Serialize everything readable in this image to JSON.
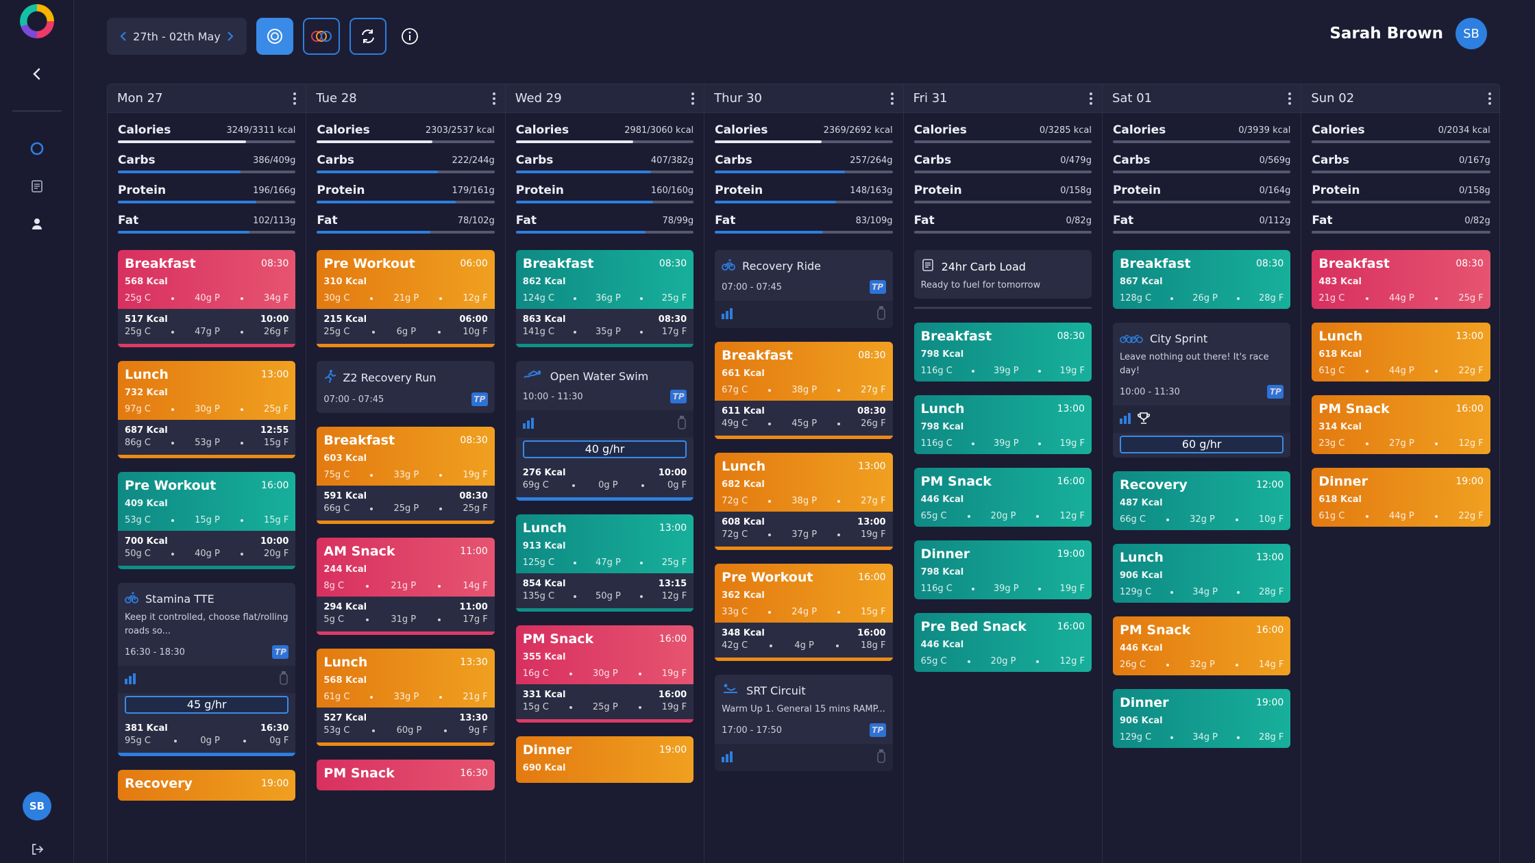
{
  "nav": {
    "user_initials": "SB"
  },
  "header": {
    "date_range": "27th - 02th May",
    "user_name": "Sarah Brown",
    "user_initials": "SB"
  },
  "colors": {
    "teal": "#14a596",
    "orange": "#ee9018",
    "red": "#dd3b65",
    "blue": "#2d7fe0",
    "white": "#e9eaf2"
  },
  "days": [
    {
      "label": "Mon 27",
      "macros": [
        {
          "name": "Calories",
          "value": "3249/3311 kcal",
          "pct": 0.72,
          "color": "#e9eaf2"
        },
        {
          "name": "Carbs",
          "value": "386/409g",
          "pct": 0.69,
          "color": "#2d7fe0"
        },
        {
          "name": "Protein",
          "value": "196/166g",
          "pct": 0.78,
          "color": "#2d7fe0"
        },
        {
          "name": "Fat",
          "value": "102/113g",
          "pct": 0.74,
          "color": "#2d7fe0"
        }
      ],
      "cards": [
        {
          "kind": "meal",
          "color": "red",
          "name": "Breakfast",
          "time": "08:30",
          "kcal": "568 Kcal",
          "c": "25g C",
          "p": "40g P",
          "f": "34g F",
          "sub": {
            "kcal": "517 Kcal",
            "time": "10:00",
            "c": "25g C",
            "p": "47g P",
            "f": "26g F"
          }
        },
        {
          "kind": "meal",
          "color": "orange",
          "name": "Lunch",
          "time": "13:00",
          "kcal": "732 Kcal",
          "c": "97g C",
          "p": "30g P",
          "f": "25g F",
          "sub": {
            "kcal": "687 Kcal",
            "time": "12:55",
            "c": "86g C",
            "p": "53g P",
            "f": "15g F"
          }
        },
        {
          "kind": "meal",
          "color": "teal",
          "name": "Pre Workout",
          "time": "16:00",
          "kcal": "409 Kcal",
          "c": "53g C",
          "p": "15g P",
          "f": "15g F",
          "sub": {
            "kcal": "700 Kcal",
            "time": "10:00",
            "c": "50g C",
            "p": "40g P",
            "f": "20g F"
          }
        },
        {
          "kind": "workout",
          "icon": "cycling-icon",
          "title": "Stamina TTE",
          "desc": "Keep it controlled, choose flat/rolling roads so...",
          "time": "16:30 - 18:30",
          "intake": "45 g/hr",
          "sub": {
            "kcal": "381 Kcal",
            "time": "16:30",
            "c": "95g C",
            "p": "0g P",
            "f": "0g F"
          }
        },
        {
          "kind": "meal",
          "color": "orange",
          "name": "Recovery",
          "time": "19:00",
          "kcal": "",
          "c": "",
          "p": "",
          "f": ""
        }
      ]
    },
    {
      "label": "Tue 28",
      "macros": [
        {
          "name": "Calories",
          "value": "2303/2537 kcal",
          "pct": 0.65,
          "color": "#e9eaf2"
        },
        {
          "name": "Carbs",
          "value": "222/244g",
          "pct": 0.68,
          "color": "#2d7fe0"
        },
        {
          "name": "Protein",
          "value": "179/161g",
          "pct": 0.78,
          "color": "#2d7fe0"
        },
        {
          "name": "Fat",
          "value": "78/102g",
          "pct": 0.64,
          "color": "#2d7fe0"
        }
      ],
      "cards": [
        {
          "kind": "meal",
          "color": "orange",
          "name": "Pre Workout",
          "time": "06:00",
          "kcal": "310 Kcal",
          "c": "30g C",
          "p": "21g P",
          "f": "12g F",
          "sub": {
            "kcal": "215 Kcal",
            "time": "06:00",
            "c": "25g C",
            "p": "6g P",
            "f": "10g F"
          }
        },
        {
          "kind": "workout",
          "icon": "running-icon",
          "title": "Z2 Recovery Run",
          "desc": "",
          "time": "07:00 - 07:45",
          "nofoot": true
        },
        {
          "kind": "meal",
          "color": "orange",
          "name": "Breakfast",
          "time": "08:30",
          "kcal": "603 Kcal",
          "c": "75g C",
          "p": "33g P",
          "f": "19g F",
          "sub": {
            "kcal": "591 Kcal",
            "time": "08:30",
            "c": "66g C",
            "p": "25g P",
            "f": "25g F"
          }
        },
        {
          "kind": "meal",
          "color": "red",
          "name": "AM Snack",
          "time": "11:00",
          "kcal": "244 Kcal",
          "c": "8g C",
          "p": "21g P",
          "f": "14g F",
          "sub": {
            "kcal": "294 Kcal",
            "time": "11:00",
            "c": "5g C",
            "p": "31g P",
            "f": "17g F"
          }
        },
        {
          "kind": "meal",
          "color": "orange",
          "name": "Lunch",
          "time": "13:30",
          "kcal": "568 Kcal",
          "c": "61g C",
          "p": "33g P",
          "f": "21g F",
          "sub": {
            "kcal": "527 Kcal",
            "time": "13:30",
            "c": "53g C",
            "p": "60g P",
            "f": "9g F"
          }
        },
        {
          "kind": "meal",
          "color": "red",
          "name": "PM Snack",
          "time": "16:30",
          "kcal": "",
          "c": "",
          "p": "",
          "f": ""
        }
      ]
    },
    {
      "label": "Wed 29",
      "macros": [
        {
          "name": "Calories",
          "value": "2981/3060 kcal",
          "pct": 0.66,
          "color": "#e9eaf2"
        },
        {
          "name": "Carbs",
          "value": "407/382g",
          "pct": 0.76,
          "color": "#2d7fe0"
        },
        {
          "name": "Protein",
          "value": "160/160g",
          "pct": 0.77,
          "color": "#2d7fe0"
        },
        {
          "name": "Fat",
          "value": "78/99g",
          "pct": 0.73,
          "color": "#2d7fe0"
        }
      ],
      "cards": [
        {
          "kind": "meal",
          "color": "teal",
          "name": "Breakfast",
          "time": "08:30",
          "kcal": "862 Kcal",
          "c": "124g C",
          "p": "36g P",
          "f": "25g F",
          "sub": {
            "kcal": "863 Kcal",
            "time": "08:30",
            "c": "141g C",
            "p": "35g P",
            "f": "17g F"
          }
        },
        {
          "kind": "workout",
          "icon": "swimming-icon",
          "title": "Open Water Swim",
          "desc": "",
          "time": "10:00 - 11:30",
          "intake": "40 g/hr",
          "sub": {
            "kcal": "276 Kcal",
            "time": "10:00",
            "c": "69g C",
            "p": "0g P",
            "f": "0g F"
          }
        },
        {
          "kind": "meal",
          "color": "teal",
          "name": "Lunch",
          "time": "13:00",
          "kcal": "913 Kcal",
          "c": "125g C",
          "p": "47g P",
          "f": "25g F",
          "sub": {
            "kcal": "854 Kcal",
            "time": "13:15",
            "c": "135g C",
            "p": "50g P",
            "f": "12g F"
          }
        },
        {
          "kind": "meal",
          "color": "red",
          "name": "PM Snack",
          "time": "16:00",
          "kcal": "355 Kcal",
          "c": "16g C",
          "p": "30g P",
          "f": "19g F",
          "sub": {
            "kcal": "331 Kcal",
            "time": "16:00",
            "c": "15g C",
            "p": "25g P",
            "f": "19g F"
          }
        },
        {
          "kind": "meal",
          "color": "orange",
          "name": "Dinner",
          "time": "19:00",
          "kcal": "690 Kcal",
          "c": "",
          "p": "",
          "f": ""
        }
      ]
    },
    {
      "label": "Thur 30",
      "macros": [
        {
          "name": "Calories",
          "value": "2369/2692 kcal",
          "pct": 0.6,
          "color": "#e9eaf2"
        },
        {
          "name": "Carbs",
          "value": "257/264g",
          "pct": 0.73,
          "color": "#2d7fe0"
        },
        {
          "name": "Protein",
          "value": "148/163g",
          "pct": 0.68,
          "color": "#2d7fe0"
        },
        {
          "name": "Fat",
          "value": "83/109g",
          "pct": 0.61,
          "color": "#2d7fe0"
        }
      ],
      "cards": [
        {
          "kind": "workout",
          "icon": "cycling-icon",
          "title": "Recovery Ride",
          "desc": "",
          "time": "07:00 - 07:45"
        },
        {
          "kind": "meal",
          "color": "orange",
          "name": "Breakfast",
          "time": "08:30",
          "kcal": "661 Kcal",
          "c": "67g C",
          "p": "38g P",
          "f": "27g F",
          "sub": {
            "kcal": "611 Kcal",
            "time": "08:30",
            "c": "49g C",
            "p": "45g P",
            "f": "26g F"
          }
        },
        {
          "kind": "meal",
          "color": "orange",
          "name": "Lunch",
          "time": "13:00",
          "kcal": "682 Kcal",
          "c": "72g C",
          "p": "38g P",
          "f": "27g F",
          "sub": {
            "kcal": "608 Kcal",
            "time": "13:00",
            "c": "72g C",
            "p": "37g P",
            "f": "19g F"
          }
        },
        {
          "kind": "meal",
          "color": "orange",
          "name": "Pre Workout",
          "time": "16:00",
          "kcal": "362 Kcal",
          "c": "33g C",
          "p": "24g P",
          "f": "15g F",
          "sub": {
            "kcal": "348 Kcal",
            "time": "16:00",
            "c": "42g C",
            "p": "4g P",
            "f": "18g F"
          }
        },
        {
          "kind": "workout",
          "icon": "strength-icon",
          "title": "SRT Circuit",
          "desc": "Warm Up 1. General 15 mins RAMP...",
          "time": "17:00 - 17:50"
        }
      ]
    },
    {
      "label": "Fri 31",
      "macros": [
        {
          "name": "Calories",
          "value": "0/3285 kcal",
          "pct": 0,
          "color": "#e9eaf2"
        },
        {
          "name": "Carbs",
          "value": "0/479g",
          "pct": 0,
          "color": "#2d7fe0"
        },
        {
          "name": "Protein",
          "value": "0/158g",
          "pct": 0,
          "color": "#2d7fe0"
        },
        {
          "name": "Fat",
          "value": "0/82g",
          "pct": 0,
          "color": "#2d7fe0"
        }
      ],
      "cards": [
        {
          "kind": "note",
          "title": "24hr Carb Load",
          "desc": "Ready to fuel for tomorrow"
        },
        {
          "kind": "meal",
          "color": "teal",
          "name": "Breakfast",
          "time": "08:30",
          "kcal": "798 Kcal",
          "c": "116g C",
          "p": "39g P",
          "f": "19g F"
        },
        {
          "kind": "meal",
          "color": "teal",
          "name": "Lunch",
          "time": "13:00",
          "kcal": "798 Kcal",
          "c": "116g C",
          "p": "39g P",
          "f": "19g F"
        },
        {
          "kind": "meal",
          "color": "teal",
          "name": "PM Snack",
          "time": "16:00",
          "kcal": "446 Kcal",
          "c": "65g C",
          "p": "20g P",
          "f": "12g F"
        },
        {
          "kind": "meal",
          "color": "teal",
          "name": "Dinner",
          "time": "19:00",
          "kcal": "798 Kcal",
          "c": "116g C",
          "p": "39g P",
          "f": "19g F"
        },
        {
          "kind": "meal",
          "color": "teal",
          "name": "Pre Bed Snack",
          "time": "16:00",
          "kcal": "446 Kcal",
          "c": "65g C",
          "p": "20g P",
          "f": "12g F"
        }
      ]
    },
    {
      "label": "Sat 01",
      "macros": [
        {
          "name": "Calories",
          "value": "0/3939 kcal",
          "pct": 0,
          "color": "#e9eaf2"
        },
        {
          "name": "Carbs",
          "value": "0/569g",
          "pct": 0,
          "color": "#2d7fe0"
        },
        {
          "name": "Protein",
          "value": "0/164g",
          "pct": 0,
          "color": "#2d7fe0"
        },
        {
          "name": "Fat",
          "value": "0/112g",
          "pct": 0,
          "color": "#2d7fe0"
        }
      ],
      "cards": [
        {
          "kind": "meal",
          "color": "teal",
          "name": "Breakfast",
          "time": "08:30",
          "kcal": "867 Kcal",
          "c": "128g C",
          "p": "26g P",
          "f": "28g F"
        },
        {
          "kind": "workout",
          "icon": "cycling-group-icon",
          "title": "City Sprint",
          "desc": "Leave nothing out there! It's race day!",
          "time": "10:00 - 11:30",
          "intake": "60 g/hr",
          "trophy": true
        },
        {
          "kind": "meal",
          "color": "teal",
          "name": "Recovery",
          "time": "12:00",
          "kcal": "487 Kcal",
          "c": "66g C",
          "p": "32g P",
          "f": "10g F"
        },
        {
          "kind": "meal",
          "color": "teal",
          "name": "Lunch",
          "time": "13:00",
          "kcal": "906 Kcal",
          "c": "129g C",
          "p": "34g P",
          "f": "28g F"
        },
        {
          "kind": "meal",
          "color": "orange",
          "name": "PM Snack",
          "time": "16:00",
          "kcal": "446 Kcal",
          "c": "26g C",
          "p": "32g P",
          "f": "14g F"
        },
        {
          "kind": "meal",
          "color": "teal",
          "name": "Dinner",
          "time": "19:00",
          "kcal": "906 Kcal",
          "c": "129g C",
          "p": "34g P",
          "f": "28g F"
        }
      ]
    },
    {
      "label": "Sun 02",
      "macros": [
        {
          "name": "Calories",
          "value": "0/2034 kcal",
          "pct": 0,
          "color": "#e9eaf2"
        },
        {
          "name": "Carbs",
          "value": "0/167g",
          "pct": 0,
          "color": "#2d7fe0"
        },
        {
          "name": "Protein",
          "value": "0/158g",
          "pct": 0,
          "color": "#2d7fe0"
        },
        {
          "name": "Fat",
          "value": "0/82g",
          "pct": 0,
          "color": "#2d7fe0"
        }
      ],
      "cards": [
        {
          "kind": "meal",
          "color": "red",
          "name": "Breakfast",
          "time": "08:30",
          "kcal": "483 Kcal",
          "c": "21g C",
          "p": "44g P",
          "f": "25g F"
        },
        {
          "kind": "meal",
          "color": "orange",
          "name": "Lunch",
          "time": "13:00",
          "kcal": "618 Kcal",
          "c": "61g C",
          "p": "44g P",
          "f": "22g F"
        },
        {
          "kind": "meal",
          "color": "orange",
          "name": "PM Snack",
          "time": "16:00",
          "kcal": "314 Kcal",
          "c": "23g C",
          "p": "27g P",
          "f": "12g F"
        },
        {
          "kind": "meal",
          "color": "orange",
          "name": "Dinner",
          "time": "19:00",
          "kcal": "618 Kcal",
          "c": "61g C",
          "p": "44g P",
          "f": "22g F"
        }
      ]
    }
  ]
}
